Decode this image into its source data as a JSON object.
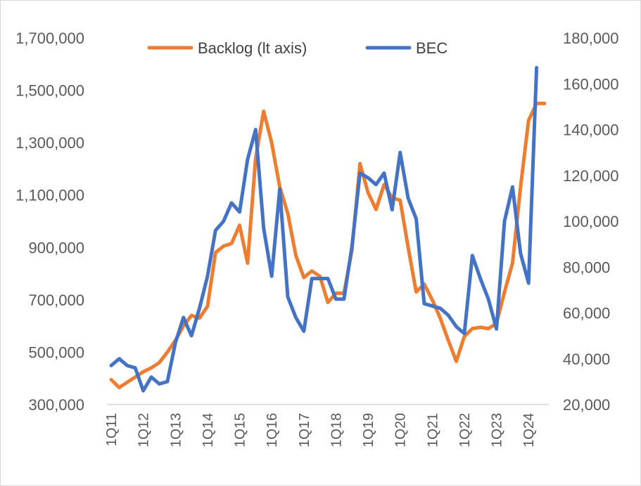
{
  "chart_data": {
    "type": "line",
    "title": "",
    "xlabel": "",
    "ylabel_left": "",
    "ylabel_right": "",
    "ylim_left": [
      300000,
      1700000
    ],
    "ylim_right": [
      20000,
      180000
    ],
    "yticks_left": [
      "1,700,000",
      "1,500,000",
      "1,300,000",
      "1,100,000",
      "900,000",
      "700,000",
      "500,000",
      "300,000"
    ],
    "yticks_right": [
      "180,000",
      "160,000",
      "140,000",
      "120,000",
      "100,000",
      "80,000",
      "60,000",
      "40,000",
      "20,000"
    ],
    "xticks": [
      "1Q11",
      "1Q12",
      "1Q13",
      "1Q14",
      "1Q15",
      "1Q16",
      "1Q17",
      "1Q18",
      "1Q19",
      "1Q20",
      "1Q21",
      "1Q22",
      "1Q23",
      "1Q24"
    ],
    "grid": false,
    "legend_position": "top-center",
    "series": [
      {
        "name": "Backlog (lt axis)",
        "axis": "left",
        "color": "#ED7D31",
        "values": [
          395000,
          365000,
          385000,
          405000,
          425000,
          440000,
          460000,
          500000,
          545000,
          600000,
          640000,
          630000,
          675000,
          880000,
          905000,
          915000,
          985000,
          840000,
          1240000,
          1420000,
          1300000,
          1130000,
          1030000,
          870000,
          785000,
          810000,
          790000,
          690000,
          725000,
          725000,
          890000,
          1220000,
          1110000,
          1045000,
          1140000,
          1090000,
          1080000,
          900000,
          730000,
          760000,
          700000,
          630000,
          545000,
          465000,
          560000,
          590000,
          595000,
          590000,
          610000,
          730000,
          840000,
          1130000,
          1385000,
          1450000,
          1450000
        ]
      },
      {
        "name": "BEC",
        "axis": "right",
        "color": "#4472C4",
        "values": [
          37000,
          40000,
          37000,
          36000,
          26000,
          32000,
          29000,
          30000,
          47000,
          58000,
          50000,
          62000,
          76000,
          96000,
          100000,
          108000,
          104000,
          127000,
          140000,
          97000,
          76000,
          114000,
          67000,
          58000,
          52000,
          75000,
          75000,
          75000,
          66000,
          66000,
          89000,
          121000,
          119000,
          116000,
          121000,
          105000,
          130000,
          110000,
          101000,
          64000,
          63000,
          62000,
          59000,
          54000,
          51000,
          85000,
          75000,
          66000,
          53000,
          100000,
          115000,
          86000,
          73000,
          167000
        ]
      }
    ]
  }
}
